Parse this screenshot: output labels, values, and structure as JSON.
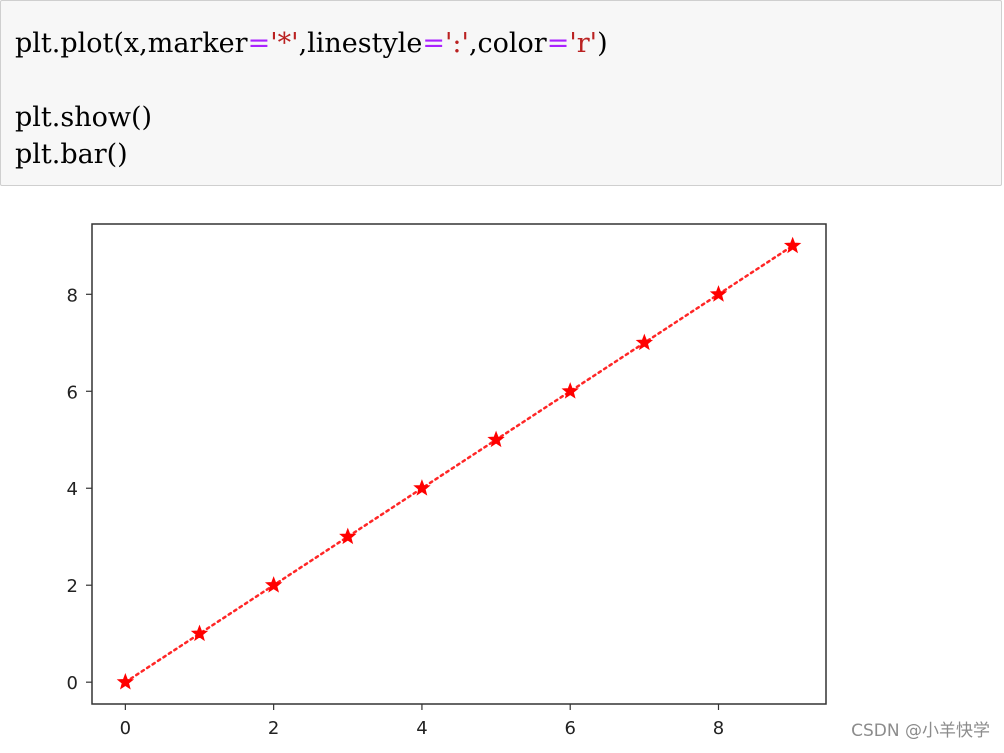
{
  "code": {
    "line1": {
      "p1": "plt.plot(x,marker",
      "eq1": "=",
      "s1": "'*'",
      "p2": ",linestyle",
      "eq2": "=",
      "s2": "':'",
      "p3": ",color",
      "eq3": "=",
      "s3": "'r'",
      "p4": ")"
    },
    "line2": "plt.show()",
    "line3": "plt.bar()"
  },
  "chart_data": {
    "type": "line",
    "x": [
      0,
      1,
      2,
      3,
      4,
      5,
      6,
      7,
      8,
      9
    ],
    "series": [
      {
        "values": [
          0,
          1,
          2,
          3,
          4,
          5,
          6,
          7,
          8,
          9
        ],
        "color": "#ff0000",
        "marker": "*",
        "linestyle": "dotted"
      }
    ],
    "xticks": [
      "0",
      "2",
      "4",
      "6",
      "8"
    ],
    "yticks": [
      "0",
      "2",
      "4",
      "6",
      "8"
    ],
    "xlim": [
      -0.45,
      9.45
    ],
    "ylim": [
      -0.45,
      9.45
    ],
    "grid": false,
    "title": "",
    "xlabel": "",
    "ylabel": ""
  },
  "watermark": "CSDN @小羊快学"
}
